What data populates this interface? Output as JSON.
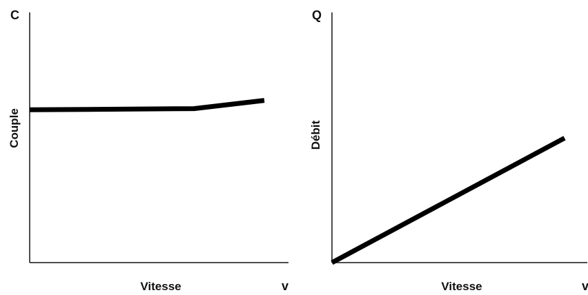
{
  "chart_data": [
    {
      "type": "line",
      "title": "",
      "x_axis_letter": "v",
      "y_axis_letter": "C",
      "xlabel": "Vitesse",
      "ylabel": "Couple",
      "xlim": [
        0,
        100
      ],
      "ylim": [
        0,
        100
      ],
      "grid": false,
      "x_ticks": false,
      "y_ticks": false,
      "series": [
        {
          "x": [
            0,
            70,
            100
          ],
          "y": [
            65,
            65.5,
            69
          ]
        }
      ]
    },
    {
      "type": "line",
      "title": "",
      "x_axis_letter": "v",
      "y_axis_letter": "Q",
      "xlabel": "Vitesse",
      "ylabel": "Débit",
      "xlim": [
        0,
        100
      ],
      "ylim": [
        0,
        100
      ],
      "grid": false,
      "x_ticks": false,
      "y_ticks": false,
      "series": [
        {
          "x": [
            0,
            100
          ],
          "y": [
            0,
            53
          ]
        }
      ]
    }
  ]
}
